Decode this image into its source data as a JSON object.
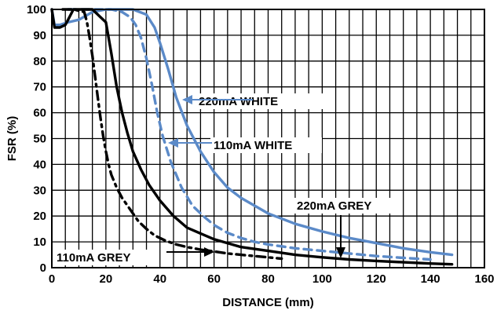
{
  "chart_data": {
    "type": "line",
    "xlabel": "DISTANCE (mm)",
    "ylabel": "FSR (%)",
    "xlim": [
      0,
      160
    ],
    "ylim": [
      0,
      100
    ],
    "x_ticks": [
      0,
      20,
      40,
      60,
      80,
      100,
      120,
      140,
      160
    ],
    "y_ticks": [
      0,
      10,
      20,
      30,
      40,
      50,
      60,
      70,
      80,
      90,
      100
    ],
    "grid": true,
    "colors": {
      "blue": "#5b8ac8",
      "black": "#000000"
    },
    "series": [
      {
        "name": "220mA WHITE",
        "color": "#5b8ac8",
        "dash": "solid",
        "x": [
          0,
          1,
          3,
          6,
          10,
          15,
          20,
          25,
          30,
          35,
          38,
          40,
          43,
          46,
          50,
          55,
          60,
          65,
          70,
          80,
          90,
          100,
          110,
          120,
          130,
          140,
          148
        ],
        "y": [
          100,
          94,
          94,
          95,
          96,
          99,
          100,
          100,
          100,
          98,
          93,
          87,
          77,
          66,
          55,
          45,
          37,
          31,
          27,
          21,
          17,
          14,
          11.5,
          9.5,
          7.5,
          6,
          5
        ]
      },
      {
        "name": "110mA WHITE",
        "color": "#5b8ac8",
        "dash": "dashed",
        "x": [
          6,
          12,
          18,
          22,
          26,
          29,
          31,
          33,
          35,
          37,
          39,
          41,
          44,
          48,
          52,
          56,
          60,
          65,
          70,
          75,
          80,
          90,
          100,
          110,
          120,
          130,
          140
        ],
        "y": [
          100,
          100,
          100,
          100,
          99,
          97,
          94,
          89,
          81,
          71,
          60,
          51,
          41,
          31,
          24,
          20,
          16.5,
          13.5,
          11.5,
          10,
          9,
          7.5,
          6.5,
          5.5,
          4.5,
          3.8,
          3.2
        ]
      },
      {
        "name": "220mA GREY",
        "color": "#000000",
        "dash": "solid",
        "x": [
          0,
          1,
          3,
          5,
          6,
          8,
          12,
          15,
          18,
          20,
          22,
          24,
          26,
          28,
          30,
          33,
          36,
          40,
          45,
          50,
          60,
          70,
          80,
          90,
          100,
          110,
          120,
          130,
          140,
          148
        ],
        "y": [
          100,
          93,
          93,
          94,
          96,
          100,
          100,
          100,
          97,
          95,
          83,
          70,
          60,
          52,
          45,
          38,
          32,
          26,
          20,
          15.5,
          11,
          8,
          6.5,
          5,
          4,
          3.2,
          2.6,
          2.1,
          1.6,
          1.3
        ]
      },
      {
        "name": "110mA GREY",
        "color": "#000000",
        "dash": "dashdot",
        "x": [
          4,
          8,
          12,
          13,
          14,
          15,
          16,
          17,
          18,
          19,
          20,
          21,
          22,
          24,
          26,
          28,
          30,
          32,
          35,
          38,
          42,
          46,
          50,
          55,
          60,
          65,
          70,
          75,
          80,
          85
        ],
        "y": [
          100,
          100,
          99,
          95,
          89,
          82,
          74,
          66,
          58,
          51,
          45,
          40,
          36,
          31,
          27,
          24,
          21,
          18,
          15,
          12.5,
          10.5,
          9,
          8,
          7,
          6.3,
          5.5,
          5,
          4.5,
          4,
          3.5
        ]
      }
    ],
    "annotations": [
      {
        "text": "220mA WHITE",
        "series": "220mA WHITE"
      },
      {
        "text": "110mA WHITE",
        "series": "110mA WHITE"
      },
      {
        "text": "220mA GREY",
        "series": "220mA GREY"
      },
      {
        "text": "110mA GREY",
        "series": "110mA GREY"
      }
    ]
  }
}
